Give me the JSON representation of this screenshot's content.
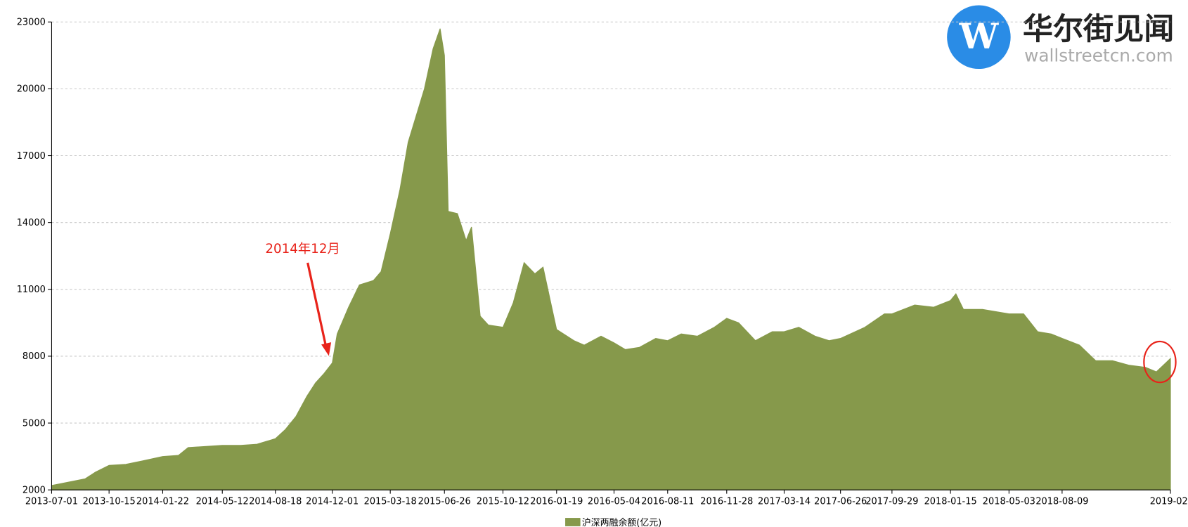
{
  "chart_data": {
    "type": "area",
    "annotation": "2014年12月",
    "logo": {
      "title": "华尔街见闻",
      "site": "wallstreetcn.com"
    },
    "x": [
      "2013-07-01",
      "2013-08-01",
      "2013-09-01",
      "2013-09-20",
      "2013-10-15",
      "2013-11-15",
      "2013-12-15",
      "2014-01-22",
      "2014-02-20",
      "2014-03-10",
      "2014-04-10",
      "2014-05-12",
      "2014-06-15",
      "2014-07-15",
      "2014-08-18",
      "2014-09-05",
      "2014-09-25",
      "2014-10-15",
      "2014-10-31",
      "2014-11-15",
      "2014-12-01",
      "2014-12-10",
      "2014-12-31",
      "2015-01-20",
      "2015-02-15",
      "2015-03-01",
      "2015-03-18",
      "2015-04-05",
      "2015-04-20",
      "2015-05-05",
      "2015-05-20",
      "2015-06-05",
      "2015-06-18",
      "2015-06-26",
      "2015-07-03",
      "2015-07-20",
      "2015-08-05",
      "2015-08-15",
      "2015-08-31",
      "2015-09-15",
      "2015-10-12",
      "2015-10-31",
      "2015-11-20",
      "2015-12-10",
      "2015-12-25",
      "2016-01-10",
      "2016-01-19",
      "2016-02-20",
      "2016-03-10",
      "2016-04-10",
      "2016-05-04",
      "2016-05-25",
      "2016-06-20",
      "2016-07-20",
      "2016-08-11",
      "2016-09-05",
      "2016-10-05",
      "2016-11-05",
      "2016-11-28",
      "2016-12-20",
      "2017-01-20",
      "2017-02-20",
      "2017-03-14",
      "2017-04-10",
      "2017-05-10",
      "2017-06-05",
      "2017-06-26",
      "2017-08-10",
      "2017-09-15",
      "2017-09-29",
      "2017-11-10",
      "2017-12-15",
      "2018-01-15",
      "2018-01-25",
      "2018-02-08",
      "2018-03-15",
      "2018-05-03",
      "2018-05-30",
      "2018-06-25",
      "2018-07-20",
      "2018-08-09",
      "2018-09-10",
      "2018-10-10",
      "2018-11-10",
      "2018-12-10",
      "2019-01-10",
      "2019-01-30",
      "2019-02-25"
    ],
    "series": [
      {
        "name": "沪深两融余额(亿元)",
        "color": "#86994b",
        "values": [
          2200,
          2350,
          2500,
          2800,
          3100,
          3150,
          3300,
          3500,
          3550,
          3900,
          3950,
          4000,
          4000,
          4050,
          4300,
          4700,
          5300,
          6200,
          6800,
          7200,
          7700,
          9000,
          10200,
          11200,
          11400,
          11800,
          13500,
          15500,
          17600,
          18800,
          20000,
          21800,
          22700,
          21500,
          14500,
          14400,
          13200,
          13800,
          9800,
          9400,
          9300,
          10400,
          12200,
          11700,
          12000,
          10200,
          9200,
          8700,
          8500,
          8900,
          8600,
          8300,
          8400,
          8800,
          8700,
          9000,
          8900,
          9300,
          9700,
          9500,
          8700,
          9100,
          9100,
          9300,
          8900,
          8700,
          8800,
          9300,
          9900,
          9900,
          10300,
          10200,
          10500,
          10800,
          10100,
          10100,
          9900,
          9900,
          9100,
          9000,
          8800,
          8500,
          7800,
          7800,
          7600,
          7500,
          7300,
          7900
        ]
      }
    ],
    "xlim": [
      "2013-07-01",
      "2019-02-25"
    ],
    "xticks": [
      "2013-07-01",
      "2013-10-15",
      "2014-01-22",
      "2014-05-12",
      "2014-08-18",
      "2014-12-01",
      "2015-03-18",
      "2015-06-26",
      "2015-10-12",
      "2016-01-19",
      "2016-05-04",
      "2016-08-11",
      "2016-11-28",
      "2017-03-14",
      "2017-06-26",
      "2017-09-29",
      "2018-01-15",
      "2018-05-03",
      "2018-08-09",
      {
        "value": "2019-02-25",
        "label": "2019-02-"
      }
    ],
    "ylim": [
      2000,
      23000
    ],
    "yticks": [
      2000,
      5000,
      8000,
      11000,
      14000,
      17000,
      20000,
      23000
    ],
    "grid": true
  }
}
